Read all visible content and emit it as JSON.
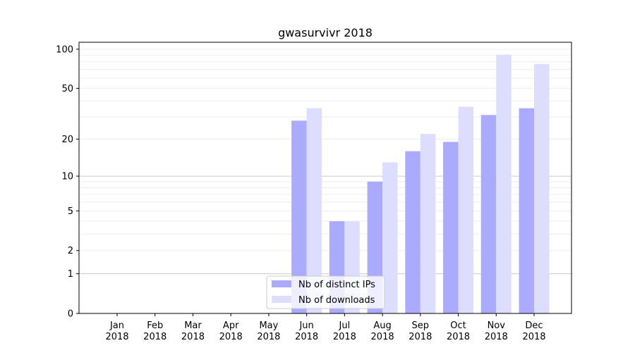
{
  "chart_data": {
    "type": "bar",
    "title": "gwasurvivr 2018",
    "xlabel": "",
    "ylabel": "",
    "yscale": "log10(x+1)",
    "ylim": [
      0,
      113
    ],
    "grid": true,
    "legend_position": "lower-center",
    "categories": [
      "Jan\n2018",
      "Feb\n2018",
      "Mar\n2018",
      "Apr\n2018",
      "May\n2018",
      "Jun\n2018",
      "Jul\n2018",
      "Aug\n2018",
      "Sep\n2018",
      "Oct\n2018",
      "Nov\n2018",
      "Dec\n2018"
    ],
    "yticks": [
      0,
      1,
      2,
      5,
      10,
      20,
      50,
      100
    ],
    "series": [
      {
        "name": "Nb of distinct IPs",
        "color": "#aaaaff",
        "values": [
          0,
          0,
          0,
          0,
          0,
          28,
          4,
          9,
          16,
          19,
          31,
          35
        ]
      },
      {
        "name": "Nb of downloads",
        "color": "#ddddff",
        "values": [
          0,
          0,
          0,
          0,
          0,
          35,
          4,
          13,
          22,
          36,
          91,
          77
        ]
      }
    ]
  }
}
